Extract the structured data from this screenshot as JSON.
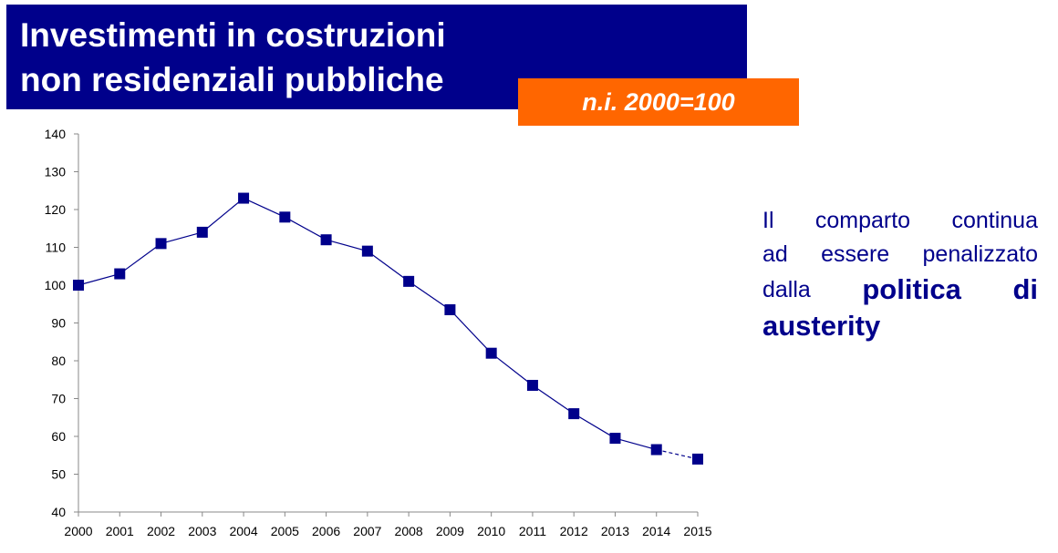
{
  "header": {
    "title_line1": "Investimenti in costruzioni",
    "title_line2": "non residenziali pubbliche",
    "badge": "n.i. 2000=100"
  },
  "note": {
    "row1": [
      "Il",
      "comparto",
      "continua"
    ],
    "row2": [
      "ad",
      "essere",
      "penalizzato"
    ],
    "row3_normal": "dalla",
    "row3_bold": [
      "politica",
      "di"
    ],
    "row4_bold": "austerity"
  },
  "colors": {
    "title_bg": "#00008b",
    "badge_bg": "#ff6600",
    "series": "#00008b",
    "note_text": "#00008b"
  },
  "chart_data": {
    "type": "line",
    "x": [
      "2000",
      "2001",
      "2002",
      "2003",
      "2004",
      "2005",
      "2006",
      "2007",
      "2008",
      "2009",
      "2010",
      "2011",
      "2012",
      "2013",
      "2014",
      "2015"
    ],
    "series": [
      {
        "values": [
          100,
          103,
          111,
          114,
          123,
          118,
          112,
          109,
          101,
          93.5,
          82,
          73.5,
          66,
          59.5,
          56.5,
          54
        ],
        "marker": "square",
        "dashed_from_index": 14
      }
    ],
    "ylim": [
      40,
      140
    ],
    "yticks": [
      40,
      50,
      60,
      70,
      80,
      90,
      100,
      110,
      120,
      130,
      140
    ],
    "grid": false
  }
}
